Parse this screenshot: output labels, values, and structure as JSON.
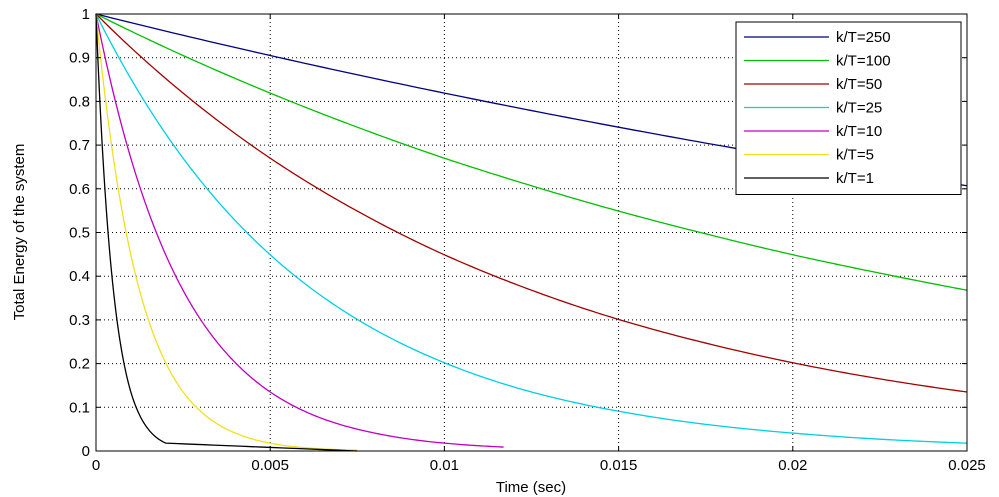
{
  "chart_data": {
    "type": "line",
    "title": "",
    "xlabel": "Time (sec)",
    "ylabel": "Total Energy of the system",
    "xlim": [
      0,
      0.025
    ],
    "ylim": [
      0,
      1
    ],
    "grid": true,
    "legend_position": "top-right",
    "x_ticks": [
      "0",
      "0.005",
      "0.01",
      "0.015",
      "0.02",
      "0.025"
    ],
    "y_ticks": [
      "0",
      "0.1",
      "0.2",
      "0.3",
      "0.4",
      "0.5",
      "0.6",
      "0.7",
      "0.8",
      "0.9",
      "1"
    ],
    "series": [
      {
        "name": "k/T=250",
        "color": "#000080",
        "x": [
          0,
          0.005,
          0.01,
          0.015,
          0.02,
          0.025
        ],
        "values": [
          1.0,
          0.905,
          0.819,
          0.741,
          0.67,
          0.607
        ]
      },
      {
        "name": "k/T=100",
        "color": "#00c000",
        "x": [
          0,
          0.0025,
          0.005,
          0.0075,
          0.01,
          0.0125,
          0.015,
          0.0175,
          0.02,
          0.0225,
          0.025
        ],
        "values": [
          1.0,
          0.905,
          0.819,
          0.741,
          0.67,
          0.607,
          0.549,
          0.497,
          0.449,
          0.407,
          0.368
        ]
      },
      {
        "name": "k/T=50",
        "color": "#a00000",
        "x": [
          0,
          0.0025,
          0.005,
          0.0075,
          0.01,
          0.0125,
          0.015,
          0.0175,
          0.02,
          0.0225,
          0.025
        ],
        "values": [
          1.0,
          0.819,
          0.67,
          0.549,
          0.449,
          0.368,
          0.301,
          0.247,
          0.202,
          0.165,
          0.135
        ]
      },
      {
        "name": "k/T=25",
        "color": "#00d0e0",
        "x": [
          0,
          0.0025,
          0.005,
          0.0075,
          0.01,
          0.0125,
          0.015,
          0.0175,
          0.02,
          0.0225,
          0.025
        ],
        "values": [
          1.0,
          0.67,
          0.449,
          0.301,
          0.202,
          0.135,
          0.091,
          0.061,
          0.041,
          0.027,
          0.018
        ]
      },
      {
        "name": "k/T=10",
        "color": "#c000c0",
        "x": [
          0,
          0.001,
          0.002,
          0.003,
          0.004,
          0.005,
          0.0065,
          0.008,
          0.01,
          0.0117
        ],
        "values": [
          1.0,
          0.67,
          0.449,
          0.301,
          0.202,
          0.135,
          0.074,
          0.041,
          0.018,
          0.009
        ]
      },
      {
        "name": "k/T=5",
        "color": "#f0e020",
        "x": [
          0,
          0.0005,
          0.001,
          0.0015,
          0.002,
          0.0025,
          0.003,
          0.004,
          0.005,
          0.0075
        ],
        "values": [
          1.0,
          0.67,
          0.449,
          0.301,
          0.202,
          0.135,
          0.091,
          0.041,
          0.018,
          0.002
        ]
      },
      {
        "name": "k/T=1",
        "color": "#000000",
        "x": [
          0,
          0.0002,
          0.0004,
          0.0006,
          0.0008,
          0.001,
          0.0012,
          0.0015,
          0.002,
          0.0075
        ],
        "values": [
          1.0,
          0.67,
          0.449,
          0.301,
          0.202,
          0.135,
          0.091,
          0.05,
          0.018,
          0.0
        ]
      }
    ]
  }
}
